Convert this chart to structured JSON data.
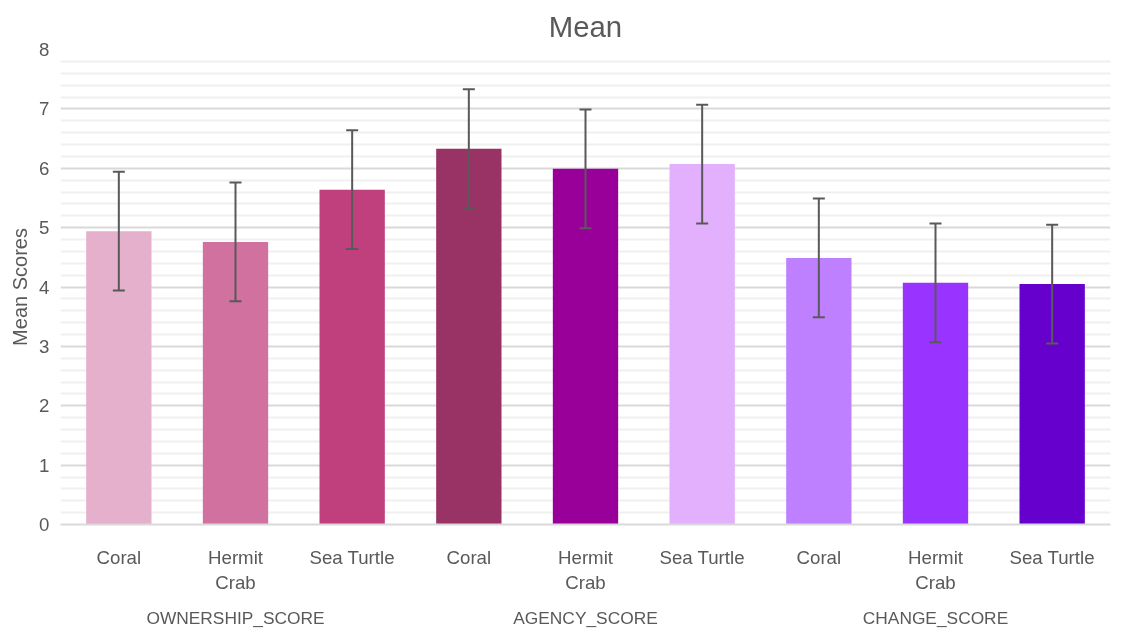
{
  "chart_data": {
    "type": "bar",
    "title": "Mean",
    "ylabel": "Mean Scores",
    "categories": [
      "Coral",
      "Hermit Crab",
      "Sea Turtle",
      "Coral",
      "Hermit Crab",
      "Sea Turtle",
      "Coral",
      "Hermit Crab",
      "Sea Turtle"
    ],
    "values": [
      4.94,
      4.76,
      5.64,
      6.33,
      5.99,
      6.07,
      4.49,
      4.07,
      4.05
    ],
    "errors": [
      1,
      1,
      1,
      1,
      1,
      1,
      1,
      1,
      1
    ],
    "colors": [
      "#e5b0cb",
      "#d0719f",
      "#c0407d",
      "#993366",
      "#990099",
      "#e2b0fc",
      "#bf80ff",
      "#9933ff",
      "#6600cc"
    ],
    "annotations": [
      "OWNERSHIP_SCORE",
      "AGENCY_SCORE",
      "CHANGE_SCORE"
    ],
    "ylim": [
      0,
      8
    ],
    "yticks": [
      0,
      1,
      2,
      3,
      4,
      5,
      6,
      7,
      8
    ],
    "grid": "y"
  }
}
